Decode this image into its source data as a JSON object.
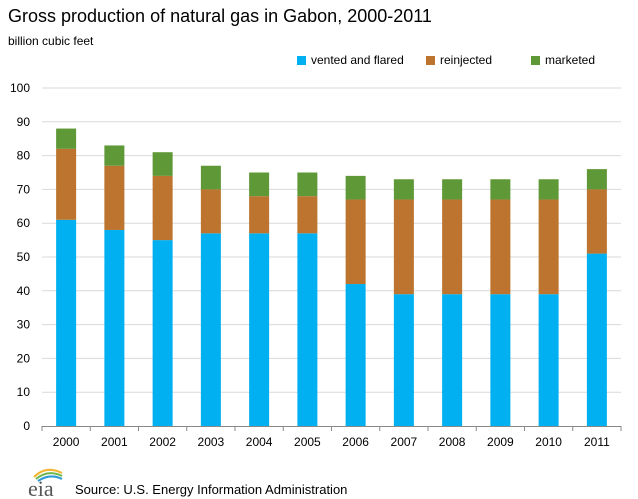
{
  "chart_data": {
    "type": "bar",
    "stacked": true,
    "title": "Gross production of natural gas in Gabon, 2000-2011",
    "ylabel": "billion cubic feet",
    "xlabel": "",
    "ylim": [
      0,
      100
    ],
    "yticks": [
      0,
      10,
      20,
      30,
      40,
      50,
      60,
      70,
      80,
      90,
      100
    ],
    "grid": true,
    "legend_position": "top-right",
    "categories": [
      "2000",
      "2001",
      "2002",
      "2003",
      "2004",
      "2005",
      "2006",
      "2007",
      "2008",
      "2009",
      "2010",
      "2011"
    ],
    "series": [
      {
        "name": "vented and flared",
        "color": "#00B0F0",
        "values": [
          61,
          58,
          55,
          57,
          57,
          57,
          42,
          39,
          39,
          39,
          39,
          51
        ]
      },
      {
        "name": "reinjected",
        "color": "#BC742F",
        "values": [
          21,
          19,
          19,
          13,
          11,
          11,
          25,
          28,
          28,
          28,
          28,
          19
        ]
      },
      {
        "name": "marketed",
        "color": "#5F9837",
        "values": [
          6,
          6,
          7,
          7,
          7,
          7,
          7,
          6,
          6,
          6,
          6,
          6
        ]
      }
    ]
  },
  "source": "Source: U.S. Energy Information Administration",
  "logo_text": "eia"
}
